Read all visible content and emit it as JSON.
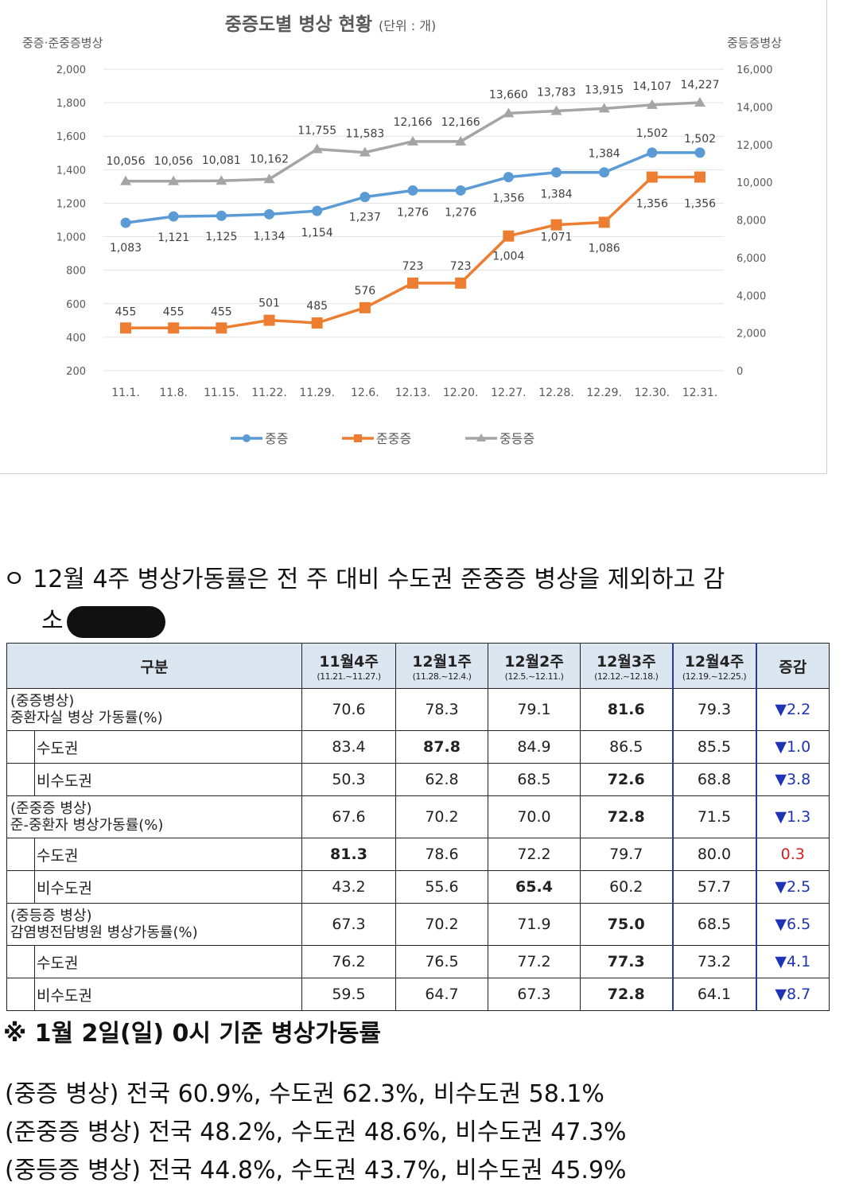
{
  "chart_data": {
    "type": "line",
    "title": "중증도별 병상 현황",
    "unit": "(단위 : 개)",
    "ylabel_left": "중증·준중증병상",
    "ylabel_right": "중등증병상",
    "categories": [
      "11.1.",
      "11.8.",
      "11.15.",
      "11.22.",
      "11.29.",
      "12.6.",
      "12.13.",
      "12.20.",
      "12.27.",
      "12.28.",
      "12.29.",
      "12.30.",
      "12.31."
    ],
    "ylim_left": [
      200,
      2000
    ],
    "ylim_right": [
      0,
      16000
    ],
    "yticks_left": [
      "2,000",
      "1,800",
      "1,600",
      "1,400",
      "1,200",
      "1,000",
      "800",
      "600",
      "400",
      "200"
    ],
    "yticks_right": [
      "16,000",
      "14,000",
      "12,000",
      "10,000",
      "8,000",
      "6,000",
      "4,000",
      "2,000",
      "0"
    ],
    "series": [
      {
        "name": "중증",
        "axis": "left",
        "color": "#5b9bd5",
        "marker": "circle",
        "values": [
          1083,
          1121,
          1125,
          1134,
          1154,
          1237,
          1276,
          1276,
          1356,
          1384,
          1384,
          1502,
          1502
        ],
        "labels": [
          "1,083",
          "1,121",
          "1,125",
          "1,134",
          "1,154",
          "1,237",
          "1,276",
          "1,276",
          "1,356",
          "1,384",
          "1,384",
          "1,502",
          "1,502"
        ]
      },
      {
        "name": "준중증",
        "axis": "left",
        "color": "#ed7d31",
        "marker": "square",
        "values": [
          455,
          455,
          455,
          501,
          485,
          576,
          723,
          723,
          1004,
          1071,
          1086,
          1356,
          1356
        ],
        "labels": [
          "455",
          "455",
          "455",
          "501",
          "485",
          "576",
          "723",
          "723",
          "1,004",
          "1,071",
          "1,086",
          "1,356",
          "1,356"
        ]
      },
      {
        "name": "중등증",
        "axis": "right",
        "color": "#a5a5a5",
        "marker": "triangle",
        "values": [
          10056,
          10056,
          10081,
          10162,
          11755,
          11583,
          12166,
          12166,
          13660,
          13783,
          13915,
          14107,
          14227
        ],
        "labels": [
          "10,056",
          "10,056",
          "10,081",
          "10,162",
          "11,755",
          "11,583",
          "12,166",
          "12,166",
          "13,660",
          "13,783",
          "13,915",
          "14,107",
          "14,227"
        ]
      }
    ]
  },
  "bullet": {
    "line1": "ㅇ 12월 4주 병상가동률은 전 주 대비 수도권 준중증 병상을 제외하고 감",
    "line2": "소"
  },
  "table": {
    "header": {
      "category": "구분",
      "weeks": [
        {
          "label": "11월4주",
          "range": "(11.21.~11.27.)"
        },
        {
          "label": "12월1주",
          "range": "(11.28.~12.4.)"
        },
        {
          "label": "12월2주",
          "range": "(12.5.~12.11.)"
        },
        {
          "label": "12월3주",
          "range": "(12.12.~12.18.)"
        },
        {
          "label": "12월4주",
          "range": "(12.19.~12.25.)"
        }
      ],
      "change": "증감"
    },
    "rows": [
      {
        "label1": "(중증병상)",
        "label2": "중환자실 병상 가동률(%)",
        "values": [
          "70.6",
          "78.3",
          "79.1",
          "81.6",
          "79.3"
        ],
        "bold": 3,
        "change": "▼2.2",
        "dir": "down"
      },
      {
        "label": "수도권",
        "values": [
          "83.4",
          "87.8",
          "84.9",
          "86.5",
          "85.5"
        ],
        "bold": 1,
        "change": "▼1.0",
        "dir": "down"
      },
      {
        "label": "비수도권",
        "values": [
          "50.3",
          "62.8",
          "68.5",
          "72.6",
          "68.8"
        ],
        "bold": 3,
        "change": "▼3.8",
        "dir": "down"
      },
      {
        "label1": "(준중증 병상)",
        "label2": "준-중환자 병상가동률(%)",
        "values": [
          "67.6",
          "70.2",
          "70.0",
          "72.8",
          "71.5"
        ],
        "bold": 3,
        "change": "▼1.3",
        "dir": "down"
      },
      {
        "label": "수도권",
        "values": [
          "81.3",
          "78.6",
          "72.2",
          "79.7",
          "80.0"
        ],
        "bold": 0,
        "change": "0.3",
        "dir": "up"
      },
      {
        "label": "비수도권",
        "values": [
          "43.2",
          "55.6",
          "65.4",
          "60.2",
          "57.7"
        ],
        "bold": 2,
        "change": "▼2.5",
        "dir": "down"
      },
      {
        "label1": "(중등증 병상)",
        "label2": "감염병전담병원 병상가동률(%)",
        "values": [
          "67.3",
          "70.2",
          "71.9",
          "75.0",
          "68.5"
        ],
        "bold": 3,
        "change": "▼6.5",
        "dir": "down"
      },
      {
        "label": "수도권",
        "values": [
          "76.2",
          "76.5",
          "77.2",
          "77.3",
          "73.2"
        ],
        "bold": 3,
        "change": "▼4.1",
        "dir": "down"
      },
      {
        "label": "비수도권",
        "values": [
          "59.5",
          "64.7",
          "67.3",
          "72.8",
          "64.1"
        ],
        "bold": 3,
        "change": "▼8.7",
        "dir": "down"
      }
    ]
  },
  "note_title": "※ 1월 2일(일) 0시 기준 병상가동률",
  "notes": [
    "(중증 병상) 전국 60.9%, 수도권 62.3%, 비수도권 58.1%",
    "(준중증 병상) 전국 48.2%, 수도권 48.6%, 비수도권 47.3%",
    "(중등증 병상) 전국 44.8%, 수도권 43.7%, 비수도권 45.9%"
  ]
}
